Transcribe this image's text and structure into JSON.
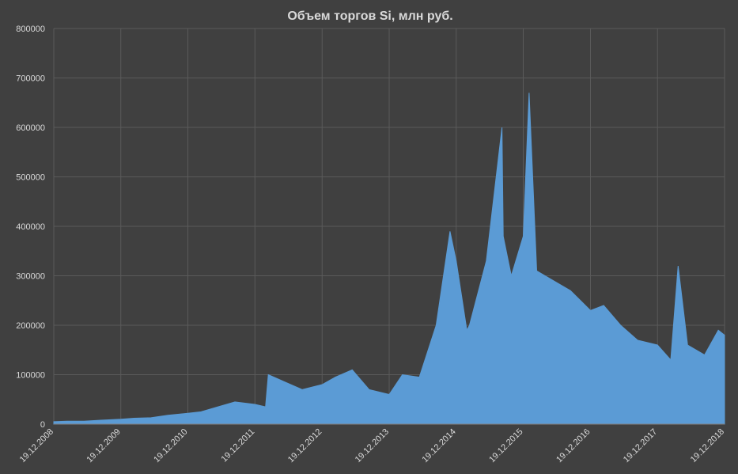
{
  "chart_data": {
    "type": "area",
    "title": "Объем торгов Si, млн руб.",
    "xlabel": "",
    "ylabel": "",
    "ylim": [
      0,
      800000
    ],
    "y_ticks": [
      "0",
      "100000",
      "200000",
      "300000",
      "400000",
      "500000",
      "600000",
      "700000",
      "800000"
    ],
    "x_ticks": [
      "19.12.2008",
      "19.12.2009",
      "19.12.2010",
      "19.12.2011",
      "19.12.2012",
      "19.12.2013",
      "19.12.2014",
      "19.12.2015",
      "19.12.2016",
      "19.12.2017",
      "19.12.2018"
    ],
    "grid": true,
    "legend": "none",
    "colors": {
      "background": "#404040",
      "series": "#5b9bd5",
      "grid": "#5a5a5a",
      "text": "#d9d9d9"
    },
    "series": [
      {
        "x": [
          "2008-12-19",
          "2009-03-01",
          "2009-06-01",
          "2009-09-01",
          "2009-12-19",
          "2010-03-01",
          "2010-06-01",
          "2010-09-01",
          "2010-12-19",
          "2011-03-01",
          "2011-06-01",
          "2011-09-01",
          "2011-12-19",
          "2012-02-15",
          "2012-03-01",
          "2012-06-01",
          "2012-09-01",
          "2012-12-19",
          "2013-03-01",
          "2013-06-01",
          "2013-09-01",
          "2013-12-19",
          "2014-03-01",
          "2014-06-01",
          "2014-09-01",
          "2014-11-15",
          "2014-12-19",
          "2015-02-15",
          "2015-03-01",
          "2015-06-01",
          "2015-08-25",
          "2015-09-01",
          "2015-10-15",
          "2015-12-19",
          "2016-01-20",
          "2016-03-01",
          "2016-06-01",
          "2016-09-01",
          "2016-12-19",
          "2017-03-01",
          "2017-06-01",
          "2017-09-01",
          "2017-12-19",
          "2018-03-01",
          "2018-04-10",
          "2018-06-01",
          "2018-09-01",
          "2018-11-15",
          "2018-12-19"
        ],
        "values": [
          5000,
          6000,
          6000,
          8000,
          10000,
          12000,
          13000,
          18000,
          22000,
          25000,
          35000,
          45000,
          40000,
          35000,
          100000,
          85000,
          70000,
          80000,
          95000,
          110000,
          70000,
          60000,
          100000,
          95000,
          200000,
          390000,
          330000,
          190000,
          200000,
          330000,
          600000,
          380000,
          300000,
          380000,
          670000,
          310000,
          290000,
          270000,
          230000,
          240000,
          200000,
          170000,
          160000,
          130000,
          320000,
          160000,
          140000,
          190000,
          180000
        ]
      }
    ]
  }
}
